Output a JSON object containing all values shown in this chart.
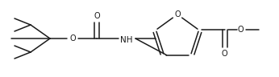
{
  "figsize": [
    3.46,
    0.96
  ],
  "dpi": 100,
  "bg_color": "#ffffff",
  "line_color": "#1a1a1a",
  "line_width": 1.1,
  "font_size": 7.0,
  "xlim": [
    0,
    346
  ],
  "ylim": [
    0,
    96
  ]
}
